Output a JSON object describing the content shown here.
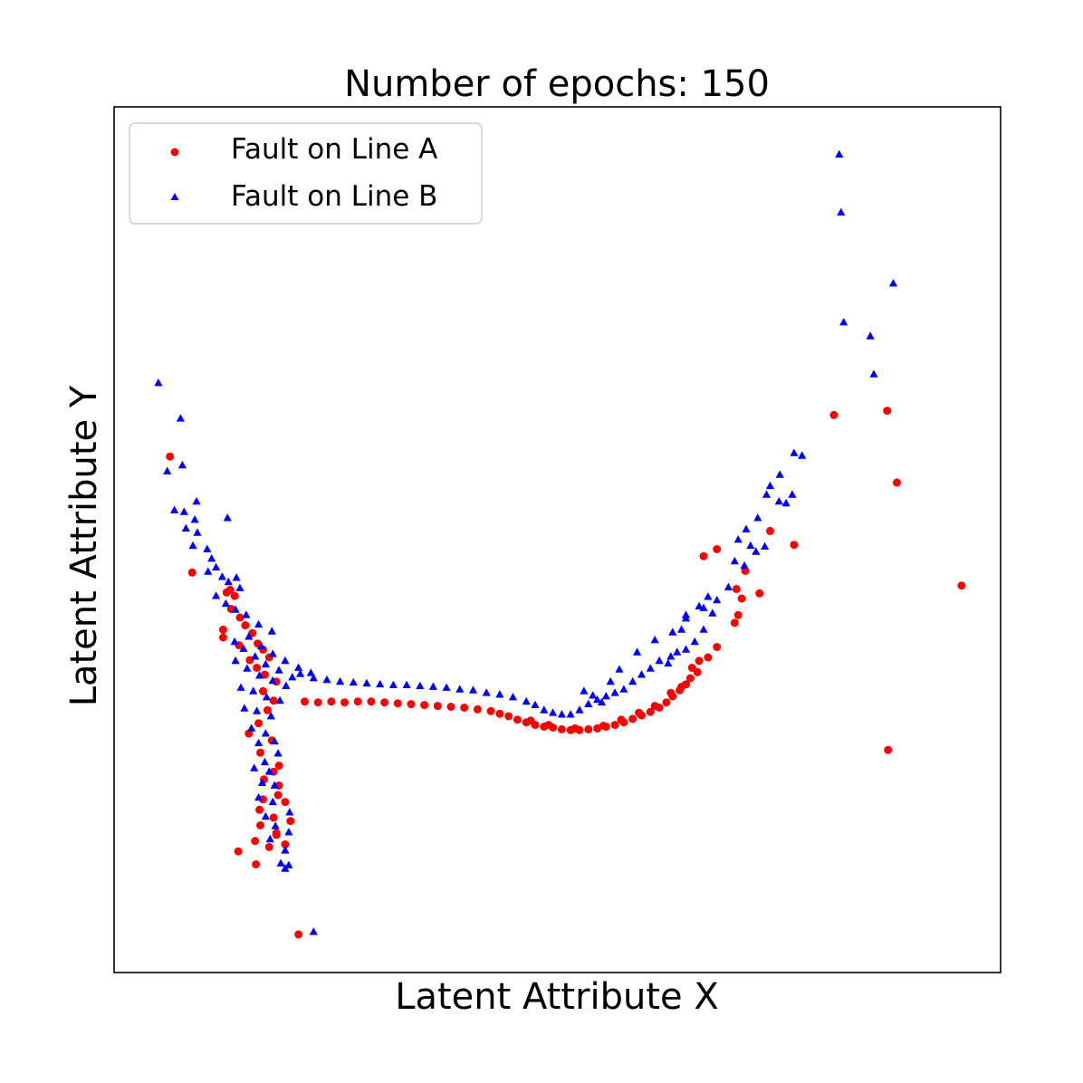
{
  "chart_data": {
    "type": "scatter",
    "title": "Number of epochs: 150",
    "xlabel": "Latent Attribute X",
    "ylabel": "Latent Attribute Y",
    "xlim": [
      0,
      100
    ],
    "ylim": [
      0,
      100
    ],
    "ticks": "none",
    "grid": false,
    "legend_position": "top-left",
    "series": [
      {
        "name": "Fault on Line A",
        "marker": "circle",
        "color": "#ff0000",
        "points": [
          [
            6.3,
            59.6
          ],
          [
            8.8,
            46.2
          ],
          [
            12.3,
            39.6
          ],
          [
            12.3,
            38.7
          ],
          [
            12.7,
            43.9
          ],
          [
            13.1,
            44.2
          ],
          [
            13.6,
            43.5
          ],
          [
            13.2,
            42.0
          ],
          [
            14.2,
            41.0
          ],
          [
            14.8,
            40.1
          ],
          [
            15.6,
            39.2
          ],
          [
            16.2,
            38.0
          ],
          [
            16.8,
            37.3
          ],
          [
            17.5,
            36.4
          ],
          [
            14.1,
            37.8
          ],
          [
            15.3,
            36.1
          ],
          [
            16.1,
            35.2
          ],
          [
            17.0,
            34.4
          ],
          [
            18.3,
            33.6
          ],
          [
            16.8,
            32.5
          ],
          [
            18.0,
            31.4
          ],
          [
            17.3,
            30.3
          ],
          [
            16.3,
            28.8
          ],
          [
            15.2,
            27.6
          ],
          [
            17.8,
            26.8
          ],
          [
            16.5,
            25.4
          ],
          [
            18.6,
            23.9
          ],
          [
            16.9,
            22.3
          ],
          [
            18.5,
            20.5
          ],
          [
            16.8,
            20.0
          ],
          [
            19.3,
            19.7
          ],
          [
            16.4,
            18.8
          ],
          [
            18.0,
            17.9
          ],
          [
            16.5,
            17.0
          ],
          [
            18.3,
            16.1
          ],
          [
            15.9,
            15.2
          ],
          [
            17.5,
            14.5
          ],
          [
            16.0,
            12.5
          ],
          [
            14.0,
            14.0
          ],
          [
            19.3,
            14.8
          ],
          [
            18.3,
            15.9
          ],
          [
            19.9,
            17.5
          ],
          [
            18.6,
            21.6
          ],
          [
            18.0,
            23.2
          ],
          [
            20.8,
            4.4
          ],
          [
            21.5,
            31.3
          ],
          [
            23.0,
            31.2
          ],
          [
            24.5,
            31.3
          ],
          [
            26.0,
            31.2
          ],
          [
            27.5,
            31.3
          ],
          [
            29.0,
            31.3
          ],
          [
            30.5,
            31.2
          ],
          [
            32.0,
            31.1
          ],
          [
            33.5,
            31.0
          ],
          [
            35.0,
            30.9
          ],
          [
            36.5,
            30.8
          ],
          [
            38.0,
            30.7
          ],
          [
            39.5,
            30.6
          ],
          [
            41.0,
            30.4
          ],
          [
            42.5,
            30.2
          ],
          [
            43.5,
            29.9
          ],
          [
            44.5,
            29.6
          ],
          [
            45.5,
            29.2
          ],
          [
            46.5,
            28.9
          ],
          [
            47.5,
            28.6
          ],
          [
            48.5,
            28.4
          ],
          [
            49.5,
            28.3
          ],
          [
            50.5,
            28.1
          ],
          [
            51.5,
            28.0
          ],
          [
            52.5,
            28.0
          ],
          [
            53.5,
            28.1
          ],
          [
            54.5,
            28.2
          ],
          [
            55.5,
            28.4
          ],
          [
            56.5,
            28.6
          ],
          [
            57.5,
            28.9
          ],
          [
            58.5,
            29.3
          ],
          [
            59.5,
            29.7
          ],
          [
            60.5,
            30.1
          ],
          [
            61.5,
            30.6
          ],
          [
            62.3,
            31.2
          ],
          [
            63.0,
            31.9
          ],
          [
            63.8,
            32.6
          ],
          [
            64.5,
            33.3
          ],
          [
            65.0,
            34.0
          ],
          [
            65.8,
            34.7
          ],
          [
            64.0,
            33.0
          ],
          [
            62.8,
            32.3
          ],
          [
            61.0,
            30.8
          ],
          [
            59.2,
            30.0
          ],
          [
            57.2,
            29.2
          ],
          [
            55.2,
            28.5
          ],
          [
            52.0,
            28.2
          ],
          [
            49.0,
            28.6
          ],
          [
            47.0,
            29.1
          ],
          [
            66.0,
            36.0
          ],
          [
            65.2,
            35.2
          ],
          [
            67.0,
            36.4
          ],
          [
            68.0,
            37.6
          ],
          [
            70.0,
            40.4
          ],
          [
            70.4,
            41.3
          ],
          [
            70.8,
            43.2
          ],
          [
            70.2,
            44.3
          ],
          [
            68.0,
            48.9
          ],
          [
            66.5,
            48.1
          ],
          [
            74.0,
            51.0
          ],
          [
            71.2,
            46.4
          ],
          [
            72.8,
            43.8
          ],
          [
            76.7,
            49.4
          ],
          [
            81.2,
            64.4
          ],
          [
            87.2,
            64.9
          ],
          [
            88.3,
            56.6
          ],
          [
            87.3,
            25.7
          ],
          [
            95.6,
            44.7
          ]
        ]
      },
      {
        "name": "Fault on Line B",
        "marker": "triangle",
        "color": "#0000ff",
        "points": [
          [
            5.0,
            68.1
          ],
          [
            7.5,
            64.0
          ],
          [
            7.7,
            58.6
          ],
          [
            6.0,
            57.9
          ],
          [
            6.8,
            53.4
          ],
          [
            7.9,
            53.2
          ],
          [
            9.3,
            54.4
          ],
          [
            9.1,
            52.3
          ],
          [
            8.1,
            51.3
          ],
          [
            9.4,
            50.8
          ],
          [
            12.8,
            52.5
          ],
          [
            8.9,
            49.3
          ],
          [
            10.5,
            48.9
          ],
          [
            11.0,
            47.8
          ],
          [
            11.5,
            46.8
          ],
          [
            12.2,
            45.7
          ],
          [
            10.6,
            46.3
          ],
          [
            12.9,
            45.1
          ],
          [
            13.8,
            45.6
          ],
          [
            14.2,
            44.4
          ],
          [
            11.5,
            43.5
          ],
          [
            12.6,
            42.6
          ],
          [
            13.7,
            41.9
          ],
          [
            14.9,
            41.3
          ],
          [
            16.3,
            40.2
          ],
          [
            17.8,
            39.4
          ],
          [
            15.2,
            38.8
          ],
          [
            16.6,
            37.7
          ],
          [
            17.9,
            36.8
          ],
          [
            19.3,
            36.0
          ],
          [
            20.8,
            35.2
          ],
          [
            22.2,
            34.6
          ],
          [
            13.6,
            38.2
          ],
          [
            14.6,
            37.4
          ],
          [
            15.9,
            36.5
          ],
          [
            17.1,
            35.6
          ],
          [
            18.6,
            34.9
          ],
          [
            20.1,
            34.1
          ],
          [
            13.7,
            36.0
          ],
          [
            15.0,
            35.1
          ],
          [
            16.4,
            34.3
          ],
          [
            17.9,
            33.7
          ],
          [
            19.4,
            33.1
          ],
          [
            14.3,
            32.9
          ],
          [
            15.7,
            32.5
          ],
          [
            17.2,
            31.8
          ],
          [
            18.7,
            31.4
          ],
          [
            14.7,
            30.5
          ],
          [
            16.1,
            30.2
          ],
          [
            17.7,
            29.6
          ],
          [
            15.5,
            28.2
          ],
          [
            17.1,
            27.6
          ],
          [
            16.3,
            26.5
          ],
          [
            18.1,
            26.7
          ],
          [
            17.0,
            24.3
          ],
          [
            15.8,
            23.6
          ],
          [
            18.5,
            25.3
          ],
          [
            17.5,
            23.2
          ],
          [
            16.7,
            21.9
          ],
          [
            18.1,
            21.6
          ],
          [
            16.3,
            20.2
          ],
          [
            17.9,
            19.7
          ],
          [
            17.1,
            18.0
          ],
          [
            19.8,
            18.5
          ],
          [
            18.2,
            16.9
          ],
          [
            19.7,
            16.2
          ],
          [
            17.6,
            15.4
          ],
          [
            19.3,
            14.1
          ],
          [
            18.8,
            12.6
          ],
          [
            19.3,
            12.0
          ],
          [
            19.7,
            12.4
          ],
          [
            22.5,
            4.7
          ],
          [
            21.0,
            34.5
          ],
          [
            22.5,
            34.0
          ],
          [
            24.0,
            33.8
          ],
          [
            25.5,
            33.6
          ],
          [
            27.0,
            33.5
          ],
          [
            28.5,
            33.4
          ],
          [
            30.0,
            33.3
          ],
          [
            31.5,
            33.2
          ],
          [
            33.0,
            33.2
          ],
          [
            34.5,
            33.1
          ],
          [
            36.0,
            33.0
          ],
          [
            37.5,
            32.9
          ],
          [
            39.0,
            32.7
          ],
          [
            40.5,
            32.6
          ],
          [
            42.0,
            32.3
          ],
          [
            43.5,
            32.1
          ],
          [
            45.0,
            31.8
          ],
          [
            46.5,
            31.3
          ],
          [
            47.5,
            30.9
          ],
          [
            48.5,
            30.3
          ],
          [
            49.5,
            30.0
          ],
          [
            50.5,
            29.8
          ],
          [
            51.5,
            29.8
          ],
          [
            52.5,
            30.3
          ],
          [
            53.5,
            31.0
          ],
          [
            54.5,
            31.5
          ],
          [
            55.0,
            31.2
          ],
          [
            55.5,
            31.9
          ],
          [
            56.5,
            32.3
          ],
          [
            57.5,
            32.7
          ],
          [
            58.5,
            33.6
          ],
          [
            59.5,
            34.4
          ],
          [
            60.5,
            35.1
          ],
          [
            61.5,
            36.0
          ],
          [
            62.5,
            35.7
          ],
          [
            62.8,
            36.5
          ],
          [
            63.5,
            37.0
          ],
          [
            64.5,
            37.3
          ],
          [
            65.5,
            38.2
          ],
          [
            66.5,
            39.6
          ],
          [
            67.5,
            41.5
          ],
          [
            68.0,
            43.0
          ],
          [
            67.0,
            43.4
          ],
          [
            66.0,
            42.3
          ],
          [
            64.5,
            40.9
          ],
          [
            63.0,
            39.3
          ],
          [
            61.0,
            38.4
          ],
          [
            59.0,
            37.0
          ],
          [
            57.0,
            35.0
          ],
          [
            56.0,
            33.6
          ],
          [
            54.0,
            32.0
          ],
          [
            53.0,
            32.5
          ],
          [
            64.0,
            39.6
          ],
          [
            64.5,
            41.3
          ],
          [
            66.5,
            42.1
          ],
          [
            69.3,
            44.5
          ],
          [
            70.0,
            47.5
          ],
          [
            71.1,
            47.0
          ],
          [
            71.8,
            49.3
          ],
          [
            72.4,
            48.6
          ],
          [
            73.4,
            49.2
          ],
          [
            70.4,
            50.0
          ],
          [
            71.3,
            51.2
          ],
          [
            72.6,
            52.5
          ],
          [
            73.6,
            55.2
          ],
          [
            74.0,
            56.2
          ],
          [
            75.0,
            54.4
          ],
          [
            75.8,
            54.2
          ],
          [
            76.5,
            55.2
          ],
          [
            75.1,
            57.5
          ],
          [
            76.7,
            60.0
          ],
          [
            77.6,
            59.7
          ],
          [
            82.3,
            75.1
          ],
          [
            82.0,
            87.8
          ],
          [
            81.8,
            94.5
          ],
          [
            85.3,
            73.5
          ],
          [
            87.9,
            79.6
          ],
          [
            85.7,
            69.1
          ]
        ]
      }
    ]
  }
}
